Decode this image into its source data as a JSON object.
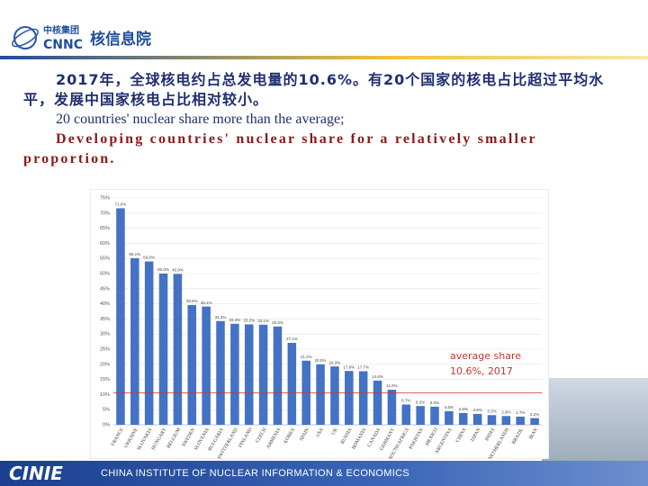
{
  "header": {
    "logo_cn": "中核集团",
    "logo_en": "CNNC",
    "logo_name": "核信息院"
  },
  "heading": {
    "zh": "2017年，全球核电约占总发电量的10.6%。有20个国家的核电占比超过平均水平，发展中国家核电占比相对较小。",
    "en_1": "20 countries' nuclear share more than the average;",
    "en_2": "Developing countries' nuclear share for a relatively smaller proportion."
  },
  "chart_data": {
    "type": "bar",
    "categories": [
      "FRANCE",
      "UKRAINE",
      "SLOVAKIA",
      "HUNGARY",
      "BELGIUM",
      "SWEDEN",
      "SLOVENIA",
      "BULGARIA",
      "SWITZERLAND",
      "FINLAND",
      "CZECH",
      "ARMENIA",
      "KOREA",
      "SPAIN",
      "USA",
      "UK",
      "RUSSIA",
      "ROMANIA",
      "CANADA",
      "GERMANY",
      "SOUTH AFRICA",
      "PAKISTAN",
      "MEXICO",
      "ARGENTINA",
      "CHINA",
      "JAPAN",
      "INDIA",
      "NETHERLANDS",
      "BRAZIL",
      "IRAN"
    ],
    "values": [
      71.6,
      55.1,
      54.0,
      50.0,
      49.9,
      39.6,
      39.1,
      34.3,
      33.4,
      33.2,
      33.1,
      32.5,
      27.1,
      21.2,
      20.0,
      19.3,
      17.8,
      17.7,
      14.6,
      11.6,
      6.7,
      6.2,
      6.0,
      4.5,
      3.9,
      3.6,
      3.2,
      2.9,
      2.7,
      2.2
    ],
    "value_labels": [
      "71.6%",
      "55.1%",
      "54.0%",
      "50.0%",
      "49.9%",
      "39.6%",
      "39.1%",
      "34.3%",
      "33.4%",
      "33.2%",
      "33.1%",
      "32.5%",
      "27.1%",
      "21.2%",
      "20.0%",
      "19.3%",
      "17.8%",
      "17.7%",
      "14.6%",
      "11.6%",
      "6.7%",
      "6.2%",
      "6.0%",
      "4.5%",
      "3.9%",
      "3.6%",
      "3.2%",
      "2.9%",
      "2.7%",
      "2.2%"
    ],
    "color": "#4472c4",
    "ylim": [
      0,
      75
    ],
    "yticks": [
      {
        "value": 0,
        "label": "0%"
      },
      {
        "value": 5,
        "label": "5%"
      },
      {
        "value": 10,
        "label": "10%"
      },
      {
        "value": 15,
        "label": "15%"
      },
      {
        "value": 20,
        "label": "20%"
      },
      {
        "value": 25,
        "label": "25%"
      },
      {
        "value": 30,
        "label": "30%"
      },
      {
        "value": 35,
        "label": "35%"
      },
      {
        "value": 40,
        "label": "40%"
      },
      {
        "value": 45,
        "label": "45%"
      },
      {
        "value": 50,
        "label": "50%"
      },
      {
        "value": 55,
        "label": "55%"
      },
      {
        "value": 60,
        "label": "60%"
      },
      {
        "value": 65,
        "label": "65%"
      },
      {
        "value": 70,
        "label": "70%"
      },
      {
        "value": 75,
        "label": "75%"
      }
    ],
    "grid": true,
    "reference_line": 10.6,
    "reference_color": "#c0392b",
    "annotations": [
      "average share",
      "10.6%, 2017"
    ]
  },
  "footer": {
    "abbr": "CINIE",
    "name": "CHINA INSTITUTE OF NUCLEAR INFORMATION & ECONOMICS"
  }
}
